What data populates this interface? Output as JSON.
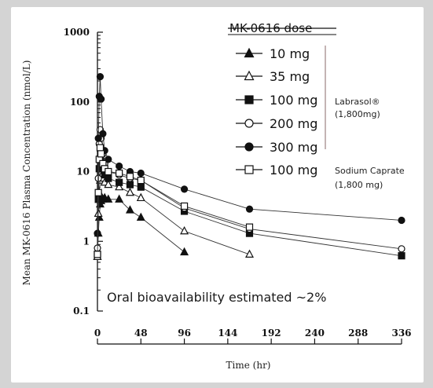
{
  "chart_data": {
    "type": "scatter",
    "title": "",
    "xlabel": "Time (hr)",
    "ylabel": "Mean MK-0616 Plasma Concentration (nmol/L)",
    "y_scale": "log",
    "xlim": [
      0,
      336
    ],
    "ylim": [
      0.1,
      1000
    ],
    "x_ticks": [
      0,
      48,
      96,
      144,
      192,
      240,
      288,
      336
    ],
    "y_ticks": [
      {
        "value": 0.1,
        "label": "0.1"
      },
      {
        "value": 1,
        "label": "1"
      },
      {
        "value": 10,
        "label": "10"
      },
      {
        "value": 100,
        "label": "100"
      },
      {
        "value": 1000,
        "label": "1000"
      }
    ],
    "legend": {
      "title": "MK-0616 dose",
      "placement": "top-right",
      "group_labels": [
        {
          "text": "Labrasol®",
          "sub": "(1,800mg)"
        },
        {
          "text": "Sodium Caprate",
          "sub": "(1,800 mg)"
        }
      ]
    },
    "annotation": "Oral bioavailability estimated ~2%",
    "series": [
      {
        "name": "10 mg",
        "marker": "triangle-filled",
        "points": [
          [
            0,
            0.6
          ],
          [
            1,
            1.3
          ],
          [
            2,
            2.2
          ],
          [
            3,
            3.4
          ],
          [
            4,
            3.8
          ],
          [
            6,
            4.0
          ],
          [
            8,
            4.2
          ],
          [
            12,
            4.0
          ],
          [
            24,
            4.0
          ],
          [
            36,
            2.8
          ],
          [
            48,
            2.2
          ],
          [
            96,
            0.7
          ]
        ]
      },
      {
        "name": "35 mg",
        "marker": "triangle-open",
        "points": [
          [
            0,
            0.6
          ],
          [
            1,
            2.5
          ],
          [
            2,
            5.0
          ],
          [
            3,
            7.5
          ],
          [
            4,
            8.5
          ],
          [
            6,
            8.0
          ],
          [
            8,
            7.0
          ],
          [
            12,
            6.5
          ],
          [
            24,
            6.0
          ],
          [
            36,
            5.0
          ],
          [
            48,
            4.2
          ],
          [
            96,
            1.4
          ],
          [
            168,
            0.65
          ]
        ]
      },
      {
        "name": "100 mg",
        "marker": "square-filled",
        "points": [
          [
            0,
            0.65
          ],
          [
            1,
            4
          ],
          [
            2,
            11
          ],
          [
            3,
            15
          ],
          [
            4,
            14
          ],
          [
            6,
            11
          ],
          [
            8,
            9
          ],
          [
            12,
            8
          ],
          [
            24,
            7
          ],
          [
            36,
            6.5
          ],
          [
            48,
            6
          ],
          [
            96,
            2.7
          ],
          [
            168,
            1.3
          ],
          [
            336,
            0.62
          ]
        ]
      },
      {
        "name": "200 mg",
        "marker": "circle-open",
        "points": [
          [
            0,
            0.8
          ],
          [
            1,
            8
          ],
          [
            2,
            25
          ],
          [
            3,
            40
          ],
          [
            4,
            30
          ],
          [
            6,
            18
          ],
          [
            8,
            13
          ],
          [
            12,
            10
          ],
          [
            24,
            9
          ],
          [
            36,
            8
          ],
          [
            48,
            7.5
          ],
          [
            96,
            3.0
          ],
          [
            168,
            1.5
          ],
          [
            336,
            0.78
          ]
        ]
      },
      {
        "name": "300 mg",
        "marker": "circle-filled",
        "points": [
          [
            0,
            1.3
          ],
          [
            1,
            30
          ],
          [
            2,
            120
          ],
          [
            3,
            230
          ],
          [
            4,
            110
          ],
          [
            6,
            35
          ],
          [
            8,
            20
          ],
          [
            12,
            15
          ],
          [
            24,
            12
          ],
          [
            36,
            10
          ],
          [
            48,
            9.5
          ],
          [
            96,
            5.6
          ],
          [
            168,
            2.9
          ],
          [
            336,
            2.0
          ]
        ]
      },
      {
        "name": "100 mg",
        "marker": "square-open",
        "points": [
          [
            0,
            0.65
          ],
          [
            1,
            5
          ],
          [
            2,
            15
          ],
          [
            3,
            22
          ],
          [
            4,
            18
          ],
          [
            6,
            13
          ],
          [
            8,
            11
          ],
          [
            12,
            10
          ],
          [
            24,
            9.5
          ],
          [
            36,
            8.5
          ],
          [
            48,
            7.5
          ],
          [
            96,
            3.2
          ],
          [
            168,
            1.6
          ]
        ]
      }
    ]
  }
}
